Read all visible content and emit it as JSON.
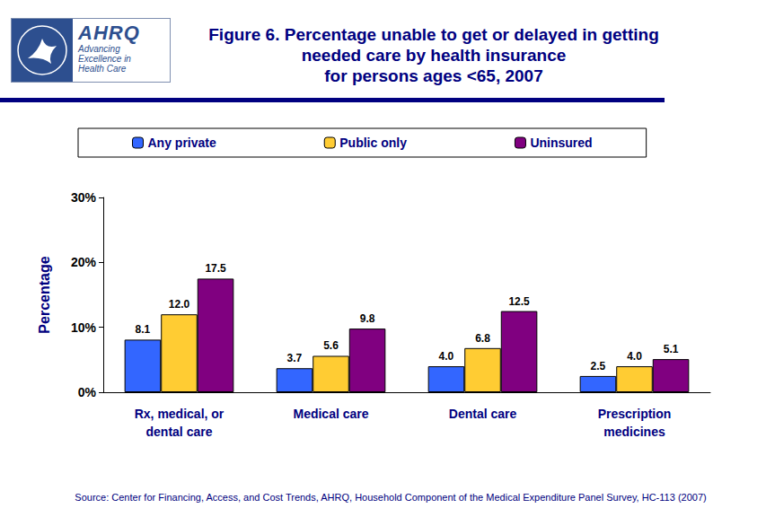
{
  "chart_data": {
    "type": "bar",
    "title": "Figure 6. Percentage unable to get or delayed in getting\nneeded care by health insurance\nfor persons ages <65, 2007",
    "logo": {
      "name": "AHRQ",
      "tagline": "Advancing\nExcellence in\nHealth Care"
    },
    "source": "Source: Center for Financing, Access, and Cost Trends, AHRQ, Household Component of the Medical Expenditure Panel Survey, HC-113 (2007)",
    "y_label": "Percentage",
    "categories": [
      "Rx, medical, or\ndental care",
      "Medical care",
      "Dental care",
      "Prescription\nmedicines"
    ],
    "series": [
      {
        "name": "Any private",
        "color": "#3366ff",
        "values": [
          8.1,
          3.7,
          4.0,
          2.5
        ],
        "value_labels": [
          "8.1",
          "3.7",
          "4.0",
          "2.5"
        ]
      },
      {
        "name": "Public only",
        "color": "#ffcc33",
        "values": [
          12.0,
          5.6,
          6.8,
          4.0
        ],
        "value_labels": [
          "12.0",
          "5.6",
          "6.8",
          "4.0"
        ]
      },
      {
        "name": "Uninsured",
        "color": "#800080",
        "values": [
          17.5,
          9.8,
          12.5,
          5.1
        ],
        "value_labels": [
          "17.5",
          "9.8",
          "12.5",
          "5.1"
        ]
      }
    ],
    "ylim": [
      0,
      30
    ],
    "yticks": [
      {
        "value": 0,
        "label": "0%"
      },
      {
        "value": 10,
        "label": "10%"
      },
      {
        "value": 20,
        "label": "20%"
      },
      {
        "value": 30,
        "label": "30%"
      }
    ],
    "grid": false,
    "legend": "top",
    "data_labels": true
  }
}
